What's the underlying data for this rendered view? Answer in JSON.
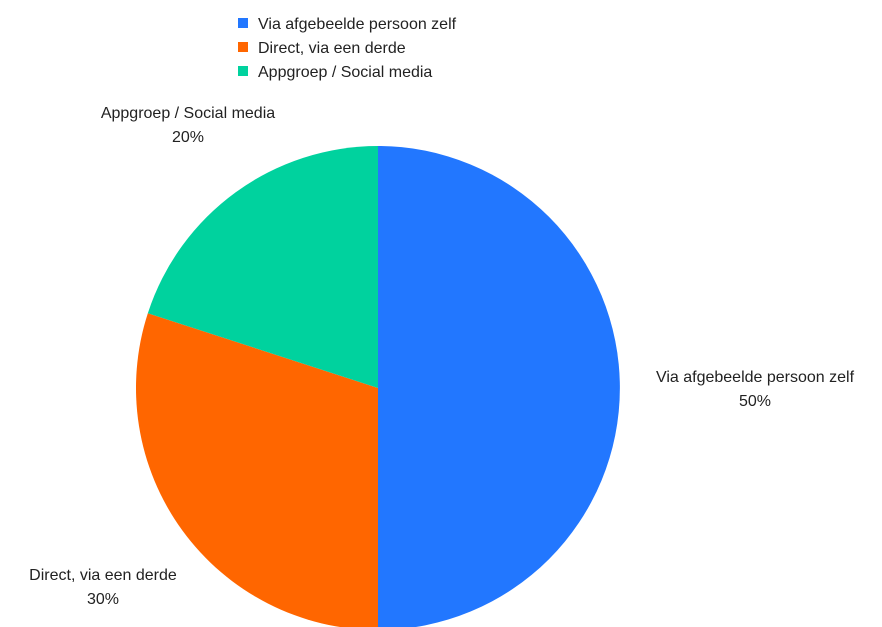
{
  "chart_data": {
    "type": "pie",
    "title": "",
    "categories": [
      "Via afgebeelde persoon zelf",
      "Direct, via een derde",
      "Appgroep / Social media"
    ],
    "values": [
      50,
      30,
      20
    ],
    "value_labels": [
      "50%",
      "30%",
      "20%"
    ],
    "colors": [
      "#2277ff",
      "#ff6600",
      "#00d29e"
    ],
    "legend_position": "top",
    "start_angle_deg": 0,
    "direction": "clockwise"
  }
}
